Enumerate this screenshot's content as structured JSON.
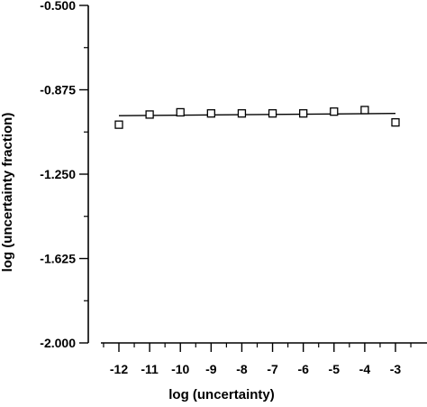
{
  "chart_data": {
    "type": "scatter",
    "title": "",
    "xlabel": "log (uncertainty)",
    "ylabel": "log (uncertainty fraction)",
    "xlim": [
      -13,
      -2.5
    ],
    "ylim": [
      -2.0,
      -0.5
    ],
    "x_ticks": [
      -12,
      -11,
      -10,
      -9,
      -8,
      -7,
      -6,
      -5,
      -4,
      -3
    ],
    "x_tick_labels": [
      "-12",
      "-11",
      "-10",
      "-9",
      "-8",
      "-7",
      "-6",
      "-5",
      "-4",
      "-3"
    ],
    "y_ticks": [
      -2.0,
      -1.625,
      -1.25,
      -0.875,
      -0.5
    ],
    "y_tick_labels": [
      "-2.000",
      "-1.625",
      "-1.250",
      "-0.875",
      "-0.500"
    ],
    "grid": false,
    "marker": "open-square",
    "series": [
      {
        "x": [
          -12,
          -11,
          -10,
          -9,
          -8,
          -7,
          -6,
          -5,
          -4,
          -3
        ],
        "y": [
          -1.03,
          -0.985,
          -0.975,
          -0.98,
          -0.98,
          -0.98,
          -0.98,
          -0.972,
          -0.965,
          -1.02
        ]
      }
    ],
    "fit_line": {
      "x": [
        -12,
        -3
      ],
      "y": [
        -0.99,
        -0.98
      ]
    }
  }
}
